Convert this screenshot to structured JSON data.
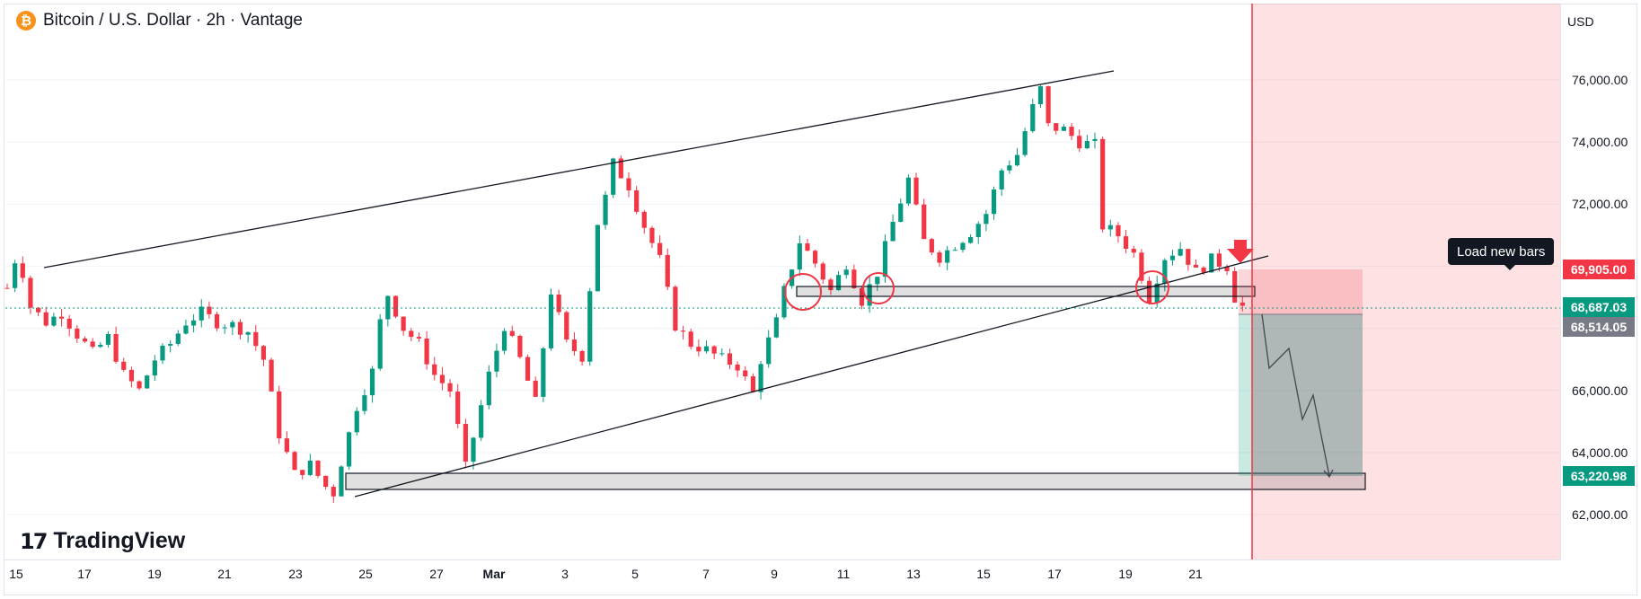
{
  "header": {
    "coin_symbol": "₿",
    "title": "Bitcoin / U.S. Dollar · 2h · Vantage"
  },
  "currency": "USD",
  "logo": {
    "mark": "17",
    "word": "TradingView"
  },
  "tooltip": "Load new bars",
  "price_axis": {
    "ticks": [
      "76,000.00",
      "74,000.00",
      "72,000.00",
      "66,000.00",
      "64,000.00",
      "62,000.00"
    ]
  },
  "time_axis": {
    "ticks": [
      "15",
      "17",
      "19",
      "21",
      "23",
      "25",
      "27",
      "Mar",
      "3",
      "5",
      "7",
      "9",
      "11",
      "13",
      "15",
      "17",
      "19",
      "21"
    ]
  },
  "price_tags": [
    {
      "value": "69,905.00",
      "color": "#f23645"
    },
    {
      "value": "68,687.03",
      "color": "#089981"
    },
    {
      "value": "68,514.05",
      "color": "#787b86"
    },
    {
      "value": "63,220.98",
      "color": "#089981"
    }
  ],
  "colors": {
    "up": "#089981",
    "down": "#f23645",
    "grid": "#f0f3fa"
  },
  "chart_data": {
    "type": "candlestick",
    "symbol": "Bitcoin / U.S. Dollar",
    "timeframe": "2h",
    "ylim": [
      61000,
      78000
    ],
    "current_price": 68687.03,
    "close_path": [
      [
        0,
        69300
      ],
      [
        1,
        70200
      ],
      [
        2,
        69800
      ],
      [
        3,
        68700
      ],
      [
        5,
        68200
      ],
      [
        7,
        68500
      ],
      [
        9,
        67800
      ],
      [
        11,
        67200
      ],
      [
        13,
        67700
      ],
      [
        15,
        66500
      ],
      [
        17,
        66000
      ],
      [
        19,
        67000
      ],
      [
        21,
        67500
      ],
      [
        23,
        68200
      ],
      [
        25,
        68500
      ],
      [
        27,
        68200
      ],
      [
        29,
        68100
      ],
      [
        31,
        67900
      ],
      [
        33,
        67000
      ],
      [
        35,
        64600
      ],
      [
        37,
        63300
      ],
      [
        39,
        63600
      ],
      [
        41,
        62900
      ],
      [
        42,
        62700
      ],
      [
        43,
        63700
      ],
      [
        45,
        65500
      ],
      [
        47,
        66600
      ],
      [
        48,
        68200
      ],
      [
        49,
        69100
      ],
      [
        51,
        68000
      ],
      [
        53,
        67500
      ],
      [
        55,
        66500
      ],
      [
        57,
        66000
      ],
      [
        58,
        64800
      ],
      [
        59,
        63500
      ],
      [
        60,
        64500
      ],
      [
        62,
        66500
      ],
      [
        64,
        68100
      ],
      [
        66,
        67000
      ],
      [
        68,
        65600
      ],
      [
        70,
        69200
      ],
      [
        72,
        67500
      ],
      [
        74,
        67100
      ],
      [
        75,
        69300
      ],
      [
        76,
        71400
      ],
      [
        77,
        72200
      ],
      [
        78,
        73300
      ],
      [
        80,
        72600
      ],
      [
        82,
        71300
      ],
      [
        84,
        70200
      ],
      [
        86,
        68100
      ],
      [
        88,
        67500
      ],
      [
        90,
        67300
      ],
      [
        92,
        67000
      ],
      [
        94,
        66800
      ],
      [
        96,
        65900
      ],
      [
        97,
        67000
      ],
      [
        99,
        68200
      ],
      [
        100,
        69200
      ],
      [
        102,
        70800
      ],
      [
        104,
        70100
      ],
      [
        106,
        69200
      ],
      [
        108,
        70100
      ],
      [
        110,
        68900
      ],
      [
        112,
        69800
      ],
      [
        114,
        71400
      ],
      [
        116,
        72800
      ],
      [
        118,
        70800
      ],
      [
        120,
        70300
      ],
      [
        122,
        70700
      ],
      [
        124,
        71100
      ],
      [
        126,
        71700
      ],
      [
        128,
        73100
      ],
      [
        130,
        73600
      ],
      [
        132,
        75100
      ],
      [
        133,
        75700
      ],
      [
        134,
        74500
      ],
      [
        136,
        74400
      ],
      [
        138,
        74000
      ],
      [
        140,
        73900
      ],
      [
        141,
        71300
      ],
      [
        143,
        71000
      ],
      [
        145,
        70400
      ],
      [
        147,
        69000
      ],
      [
        149,
        70300
      ],
      [
        151,
        70600
      ],
      [
        153,
        69800
      ],
      [
        155,
        70200
      ],
      [
        157,
        70000
      ],
      [
        158,
        69000
      ],
      [
        159,
        68700
      ]
    ],
    "support_zones": [
      69000,
      63220.98
    ],
    "trade_levels": {
      "stop": 69905.0,
      "entry": 68514.05,
      "target": 63220.98
    }
  }
}
